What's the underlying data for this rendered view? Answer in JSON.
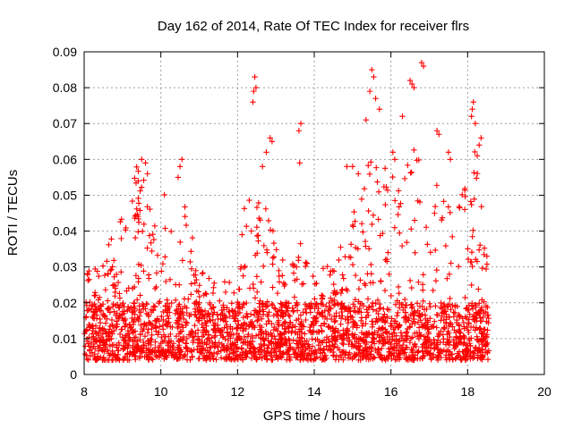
{
  "chart_data": {
    "type": "scatter",
    "title": "Day 162 of 2014, Rate Of TEC Index for receiver flrs",
    "xlabel": "GPS time / hours",
    "ylabel": "ROTI / TECUs",
    "xlim": [
      8,
      20
    ],
    "ylim": [
      0,
      0.09
    ],
    "xticks": [
      8,
      10,
      12,
      14,
      16,
      18,
      20
    ],
    "xtick_labels": [
      "8",
      "10",
      "12",
      "14",
      "16",
      "18",
      "20"
    ],
    "yticks": [
      0,
      0.01,
      0.02,
      0.03,
      0.04,
      0.05,
      0.06,
      0.07,
      0.08,
      0.09
    ],
    "ytick_labels": [
      "0",
      "0.01",
      "0.02",
      "0.03",
      "0.04",
      "0.05",
      "0.06",
      "0.07",
      "0.08",
      "0.09"
    ],
    "grid": true,
    "marker": "+",
    "color": "#ff0000",
    "data_time_range": [
      8.0,
      18.55
    ],
    "envelope": {
      "x": [
        8.0,
        8.3,
        8.6,
        8.9,
        9.2,
        9.4,
        9.6,
        9.8,
        10.0,
        10.2,
        10.5,
        10.8,
        11.1,
        11.4,
        11.7,
        12.0,
        12.2,
        12.4,
        12.6,
        12.8,
        13.0,
        13.3,
        13.6,
        13.9,
        14.2,
        14.5,
        14.8,
        15.0,
        15.2,
        15.4,
        15.6,
        15.8,
        16.0,
        16.2,
        16.4,
        16.6,
        16.8,
        17.0,
        17.2,
        17.4,
        17.6,
        17.8,
        18.0,
        18.2,
        18.4,
        18.55
      ],
      "typical_high": [
        0.025,
        0.024,
        0.03,
        0.035,
        0.045,
        0.053,
        0.05,
        0.04,
        0.045,
        0.04,
        0.045,
        0.032,
        0.025,
        0.02,
        0.02,
        0.02,
        0.045,
        0.048,
        0.04,
        0.038,
        0.03,
        0.025,
        0.03,
        0.022,
        0.022,
        0.025,
        0.03,
        0.04,
        0.045,
        0.052,
        0.055,
        0.05,
        0.048,
        0.045,
        0.05,
        0.055,
        0.05,
        0.045,
        0.048,
        0.04,
        0.04,
        0.042,
        0.045,
        0.055,
        0.04,
        0.03
      ]
    },
    "outliers": [
      [
        12.45,
        0.083
      ],
      [
        12.42,
        0.079
      ],
      [
        12.48,
        0.08
      ],
      [
        12.4,
        0.076
      ],
      [
        12.85,
        0.066
      ],
      [
        12.9,
        0.065
      ],
      [
        12.75,
        0.062
      ],
      [
        12.65,
        0.058
      ],
      [
        13.65,
        0.07
      ],
      [
        13.6,
        0.068
      ],
      [
        13.62,
        0.059
      ],
      [
        15.5,
        0.085
      ],
      [
        15.55,
        0.083
      ],
      [
        15.45,
        0.079
      ],
      [
        15.6,
        0.077
      ],
      [
        15.7,
        0.074
      ],
      [
        15.35,
        0.071
      ],
      [
        16.8,
        0.087
      ],
      [
        16.85,
        0.086
      ],
      [
        16.5,
        0.082
      ],
      [
        16.55,
        0.081
      ],
      [
        16.6,
        0.08
      ],
      [
        16.3,
        0.072
      ],
      [
        17.2,
        0.068
      ],
      [
        17.25,
        0.067
      ],
      [
        18.15,
        0.076
      ],
      [
        18.12,
        0.074
      ],
      [
        18.2,
        0.07
      ],
      [
        18.1,
        0.072
      ],
      [
        18.35,
        0.066
      ],
      [
        18.3,
        0.064
      ],
      [
        18.25,
        0.061
      ],
      [
        9.5,
        0.06
      ],
      [
        9.6,
        0.059
      ],
      [
        9.65,
        0.056
      ],
      [
        10.55,
        0.06
      ],
      [
        10.5,
        0.058
      ],
      [
        10.45,
        0.055
      ],
      [
        14.85,
        0.058
      ],
      [
        15.0,
        0.058
      ],
      [
        15.15,
        0.056
      ],
      [
        16.05,
        0.062
      ],
      [
        16.1,
        0.06
      ],
      [
        17.5,
        0.062
      ],
      [
        17.55,
        0.06
      ]
    ]
  }
}
